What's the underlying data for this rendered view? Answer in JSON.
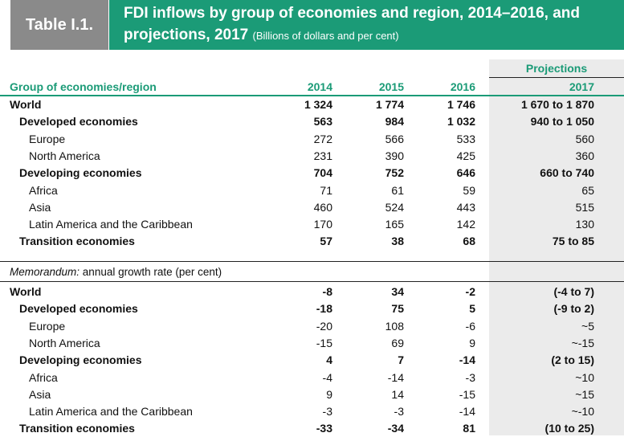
{
  "header": {
    "table_label": "Table I.1.",
    "title_line1": "FDI inflows by group of economies and region, 2014–2016, and",
    "title_line2": "projections, 2017",
    "subtitle": "(Billions of dollars and per cent)"
  },
  "columns": {
    "group_header": "Group of economies/region",
    "projections": "Projections",
    "y2014": "2014",
    "y2015": "2015",
    "y2016": "2016",
    "y2017": "2017"
  },
  "inflows": [
    {
      "label": "World",
      "v2014": "1 324",
      "v2015": "1 774",
      "v2016": "1 746",
      "v2017": "1 670 to 1 870"
    },
    {
      "label": "Developed economies",
      "v2014": "563",
      "v2015": "984",
      "v2016": "1 032",
      "v2017": "940 to 1 050"
    },
    {
      "label": "Europe",
      "v2014": "272",
      "v2015": "566",
      "v2016": "533",
      "v2017": "560"
    },
    {
      "label": "North America",
      "v2014": "231",
      "v2015": "390",
      "v2016": "425",
      "v2017": "360"
    },
    {
      "label": "Developing economies",
      "v2014": "704",
      "v2015": "752",
      "v2016": "646",
      "v2017": "660 to 740"
    },
    {
      "label": "Africa",
      "v2014": "71",
      "v2015": "61",
      "v2016": "59",
      "v2017": "65"
    },
    {
      "label": "Asia",
      "v2014": "460",
      "v2015": "524",
      "v2016": "443",
      "v2017": "515"
    },
    {
      "label": "Latin America and the Caribbean",
      "v2014": "170",
      "v2015": "165",
      "v2016": "142",
      "v2017": "130"
    },
    {
      "label": "Transition economies",
      "v2014": "57",
      "v2015": "38",
      "v2016": "68",
      "v2017": "75 to 85"
    }
  ],
  "memo": {
    "prefix": "Memorandum:",
    "text": " annual growth rate (per cent)"
  },
  "growth": [
    {
      "label": "World",
      "v2014": "-8",
      "v2015": "34",
      "v2016": "-2",
      "v2017": "(-4 to 7)"
    },
    {
      "label": "Developed economies",
      "v2014": "-18",
      "v2015": "75",
      "v2016": "5",
      "v2017": "(-9 to 2)"
    },
    {
      "label": "Europe",
      "v2014": "-20",
      "v2015": "108",
      "v2016": "-6",
      "v2017": "~5"
    },
    {
      "label": "North America",
      "v2014": "-15",
      "v2015": "69",
      "v2016": "9",
      "v2017": "~-15"
    },
    {
      "label": "Developing economies",
      "v2014": "4",
      "v2015": "7",
      "v2016": "-14",
      "v2017": "(2 to 15)"
    },
    {
      "label": "Africa",
      "v2014": "-4",
      "v2015": "-14",
      "v2016": "-3",
      "v2017": "~10"
    },
    {
      "label": "Asia",
      "v2014": "9",
      "v2015": "14",
      "v2016": "-15",
      "v2017": "~15"
    },
    {
      "label": "Latin America and the Caribbean",
      "v2014": "-3",
      "v2015": "-3",
      "v2016": "-14",
      "v2017": "~-10"
    },
    {
      "label": "Transition economies",
      "v2014": "-33",
      "v2015": "-34",
      "v2016": "81",
      "v2017": "(10 to 25)"
    }
  ]
}
